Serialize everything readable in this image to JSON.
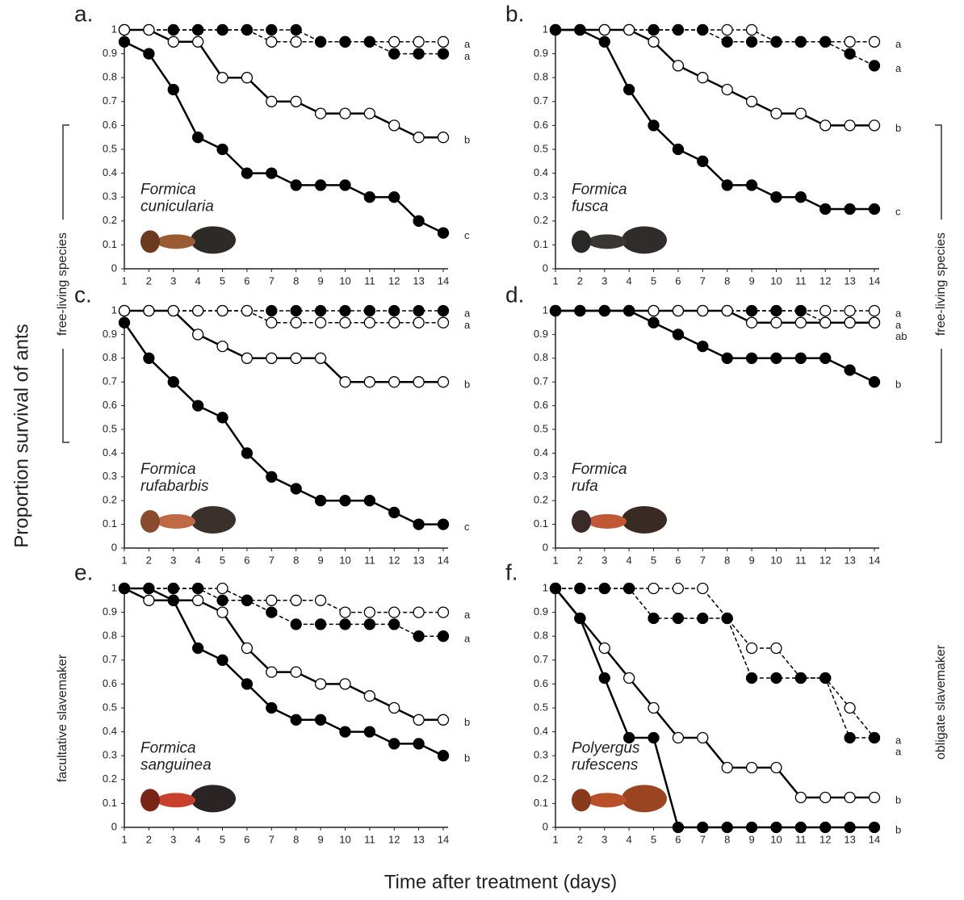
{
  "labels": {
    "y_label": "Proportion survival of ants",
    "x_label": "Time after treatment (days)",
    "groups": [
      "free-living species",
      "free-living species",
      "facultative slavemaker",
      "obligate slavemaker"
    ]
  },
  "chart_data": [
    {
      "type": "line",
      "title": "a.",
      "annotation": [
        "Formica",
        "cunicularia"
      ],
      "x": [
        1,
        2,
        3,
        4,
        5,
        6,
        7,
        8,
        9,
        10,
        11,
        12,
        13,
        14
      ],
      "xlim": [
        1,
        14
      ],
      "ylim": [
        0,
        1
      ],
      "xticks": [
        1,
        2,
        3,
        4,
        5,
        6,
        7,
        8,
        9,
        10,
        11,
        12,
        13,
        14
      ],
      "yticks": [
        0,
        0.1,
        0.2,
        0.3,
        0.4,
        0.5,
        0.6,
        0.7,
        0.8,
        0.9,
        1
      ],
      "series": [
        {
          "marker": "open",
          "dashed": true,
          "color": "#000000",
          "label": "a",
          "values": [
            1,
            1,
            1,
            1,
            1,
            1,
            0.95,
            0.95,
            0.95,
            0.95,
            0.95,
            0.95,
            0.95,
            0.95
          ]
        },
        {
          "marker": "filled",
          "dashed": true,
          "color": "#000000",
          "label": "a",
          "values": [
            1,
            1,
            1,
            1,
            1,
            1,
            1,
            1,
            0.95,
            0.95,
            0.95,
            0.9,
            0.9,
            0.9
          ]
        },
        {
          "marker": "open",
          "dashed": false,
          "color": "#000000",
          "label": "b",
          "values": [
            1,
            1,
            0.95,
            0.95,
            0.8,
            0.8,
            0.7,
            0.7,
            0.65,
            0.65,
            0.65,
            0.6,
            0.55,
            0.55
          ]
        },
        {
          "marker": "filled",
          "dashed": false,
          "color": "#000000",
          "label": "c",
          "values": [
            0.95,
            0.9,
            0.75,
            0.55,
            0.5,
            0.4,
            0.4,
            0.35,
            0.35,
            0.35,
            0.3,
            0.3,
            0.2,
            0.15
          ]
        }
      ]
    },
    {
      "type": "line",
      "title": "b.",
      "annotation": [
        "Formica",
        "fusca"
      ],
      "x": [
        1,
        2,
        3,
        4,
        5,
        6,
        7,
        8,
        9,
        10,
        11,
        12,
        13,
        14
      ],
      "xlim": [
        1,
        14
      ],
      "ylim": [
        0,
        1
      ],
      "xticks": [
        1,
        2,
        3,
        4,
        5,
        6,
        7,
        8,
        9,
        10,
        11,
        12,
        13,
        14
      ],
      "yticks": [
        0,
        0.1,
        0.2,
        0.3,
        0.4,
        0.5,
        0.6,
        0.7,
        0.8,
        0.9,
        1
      ],
      "series": [
        {
          "marker": "open",
          "dashed": true,
          "color": "#000000",
          "label": "a",
          "values": [
            1,
            1,
            1,
            1,
            1,
            1,
            1,
            1,
            1,
            0.95,
            0.95,
            0.95,
            0.95,
            0.95
          ]
        },
        {
          "marker": "filled",
          "dashed": true,
          "color": "#000000",
          "label": "a",
          "values": [
            1,
            1,
            1,
            1,
            1,
            1,
            1,
            0.95,
            0.95,
            0.95,
            0.95,
            0.95,
            0.9,
            0.85
          ]
        },
        {
          "marker": "open",
          "dashed": false,
          "color": "#000000",
          "label": "b",
          "values": [
            1,
            1,
            1,
            1,
            0.95,
            0.85,
            0.8,
            0.75,
            0.7,
            0.65,
            0.65,
            0.6,
            0.6,
            0.6
          ]
        },
        {
          "marker": "filled",
          "dashed": false,
          "color": "#000000",
          "label": "c",
          "values": [
            1,
            1,
            0.95,
            0.75,
            0.6,
            0.5,
            0.45,
            0.35,
            0.35,
            0.3,
            0.3,
            0.25,
            0.25,
            0.25
          ]
        }
      ]
    },
    {
      "type": "line",
      "title": "c.",
      "annotation": [
        "Formica",
        "rufabarbis"
      ],
      "x": [
        1,
        2,
        3,
        4,
        5,
        6,
        7,
        8,
        9,
        10,
        11,
        12,
        13,
        14
      ],
      "xlim": [
        1,
        14
      ],
      "ylim": [
        0,
        1
      ],
      "xticks": [
        1,
        2,
        3,
        4,
        5,
        6,
        7,
        8,
        9,
        10,
        11,
        12,
        13,
        14
      ],
      "yticks": [
        0,
        0.1,
        0.2,
        0.3,
        0.4,
        0.5,
        0.6,
        0.7,
        0.8,
        0.9,
        1
      ],
      "series": [
        {
          "marker": "filled",
          "dashed": true,
          "color": "#000000",
          "label": "a",
          "values": [
            1,
            1,
            1,
            1,
            1,
            1,
            1,
            1,
            1,
            1,
            1,
            1,
            1,
            1
          ]
        },
        {
          "marker": "open",
          "dashed": true,
          "color": "#000000",
          "label": "a",
          "values": [
            1,
            1,
            1,
            1,
            1,
            1,
            0.95,
            0.95,
            0.95,
            0.95,
            0.95,
            0.95,
            0.95,
            0.95
          ]
        },
        {
          "marker": "open",
          "dashed": false,
          "color": "#000000",
          "label": "b",
          "values": [
            1,
            1,
            1,
            0.9,
            0.85,
            0.8,
            0.8,
            0.8,
            0.8,
            0.7,
            0.7,
            0.7,
            0.7,
            0.7
          ]
        },
        {
          "marker": "filled",
          "dashed": false,
          "color": "#000000",
          "label": "c",
          "values": [
            0.95,
            0.8,
            0.7,
            0.6,
            0.55,
            0.4,
            0.3,
            0.25,
            0.2,
            0.2,
            0.2,
            0.15,
            0.1,
            0.1
          ]
        }
      ]
    },
    {
      "type": "line",
      "title": "d.",
      "annotation": [
        "Formica",
        "rufa"
      ],
      "x": [
        1,
        2,
        3,
        4,
        5,
        6,
        7,
        8,
        9,
        10,
        11,
        12,
        13,
        14
      ],
      "xlim": [
        1,
        14
      ],
      "ylim": [
        0,
        1
      ],
      "xticks": [
        1,
        2,
        3,
        4,
        5,
        6,
        7,
        8,
        9,
        10,
        11,
        12,
        13,
        14
      ],
      "yticks": [
        0,
        0.1,
        0.2,
        0.3,
        0.4,
        0.5,
        0.6,
        0.7,
        0.8,
        0.9,
        1
      ],
      "series": [
        {
          "marker": "open",
          "dashed": true,
          "color": "#000000",
          "label": "a",
          "values": [
            1,
            1,
            1,
            1,
            1,
            1,
            1,
            1,
            1,
            1,
            1,
            1,
            1,
            1
          ]
        },
        {
          "marker": "filled",
          "dashed": true,
          "color": "#000000",
          "label": "a",
          "values": [
            1,
            1,
            1,
            1,
            1,
            1,
            1,
            1,
            1,
            1,
            1,
            0.95,
            0.95,
            0.95
          ]
        },
        {
          "marker": "open",
          "dashed": false,
          "color": "#000000",
          "label": "ab",
          "values": [
            1,
            1,
            1,
            1,
            1,
            1,
            1,
            1,
            0.95,
            0.95,
            0.95,
            0.95,
            0.95,
            0.95
          ]
        },
        {
          "marker": "filled",
          "dashed": false,
          "color": "#000000",
          "label": "b",
          "values": [
            1,
            1,
            1,
            1,
            0.95,
            0.9,
            0.85,
            0.8,
            0.8,
            0.8,
            0.8,
            0.8,
            0.75,
            0.7
          ]
        }
      ]
    },
    {
      "type": "line",
      "title": "e.",
      "annotation": [
        "Formica",
        "sanguinea"
      ],
      "x": [
        1,
        2,
        3,
        4,
        5,
        6,
        7,
        8,
        9,
        10,
        11,
        12,
        13,
        14
      ],
      "xlim": [
        1,
        14
      ],
      "ylim": [
        0,
        1
      ],
      "xticks": [
        1,
        2,
        3,
        4,
        5,
        6,
        7,
        8,
        9,
        10,
        11,
        12,
        13,
        14
      ],
      "yticks": [
        0,
        0.1,
        0.2,
        0.3,
        0.4,
        0.5,
        0.6,
        0.7,
        0.8,
        0.9,
        1
      ],
      "series": [
        {
          "marker": "open",
          "dashed": true,
          "color": "#000000",
          "label": "a",
          "values": [
            1,
            1,
            1,
            1,
            1,
            0.95,
            0.95,
            0.95,
            0.95,
            0.9,
            0.9,
            0.9,
            0.9,
            0.9
          ]
        },
        {
          "marker": "filled",
          "dashed": true,
          "color": "#000000",
          "label": "a",
          "values": [
            1,
            1,
            1,
            1,
            0.95,
            0.95,
            0.9,
            0.85,
            0.85,
            0.85,
            0.85,
            0.85,
            0.8,
            0.8
          ]
        },
        {
          "marker": "open",
          "dashed": false,
          "color": "#000000",
          "label": "b",
          "values": [
            1,
            0.95,
            0.95,
            0.95,
            0.9,
            0.75,
            0.65,
            0.65,
            0.6,
            0.6,
            0.55,
            0.5,
            0.45,
            0.45
          ]
        },
        {
          "marker": "filled",
          "dashed": false,
          "color": "#000000",
          "label": "b",
          "values": [
            1,
            1,
            0.95,
            0.75,
            0.7,
            0.6,
            0.5,
            0.45,
            0.45,
            0.4,
            0.4,
            0.35,
            0.35,
            0.3
          ]
        }
      ]
    },
    {
      "type": "line",
      "title": "f.",
      "annotation": [
        "Polyergus",
        "rufescens"
      ],
      "x": [
        1,
        2,
        3,
        4,
        5,
        6,
        7,
        8,
        9,
        10,
        11,
        12,
        13,
        14
      ],
      "xlim": [
        1,
        14
      ],
      "ylim": [
        0,
        1
      ],
      "xticks": [
        1,
        2,
        3,
        4,
        5,
        6,
        7,
        8,
        9,
        10,
        11,
        12,
        13,
        14
      ],
      "yticks": [
        0,
        0.1,
        0.2,
        0.3,
        0.4,
        0.5,
        0.6,
        0.7,
        0.8,
        0.9,
        1
      ],
      "series": [
        {
          "marker": "open",
          "dashed": true,
          "color": "#000000",
          "label": "a",
          "values": [
            1,
            1,
            1,
            1,
            1,
            1,
            1,
            0.875,
            0.75,
            0.75,
            0.625,
            0.625,
            0.5,
            0.375
          ]
        },
        {
          "marker": "filled",
          "dashed": true,
          "color": "#000000",
          "label": "a",
          "values": [
            1,
            1,
            1,
            1,
            0.875,
            0.875,
            0.875,
            0.875,
            0.625,
            0.625,
            0.625,
            0.625,
            0.375,
            0.375
          ]
        },
        {
          "marker": "open",
          "dashed": false,
          "color": "#000000",
          "label": "b",
          "values": [
            1,
            0.875,
            0.75,
            0.625,
            0.5,
            0.375,
            0.375,
            0.25,
            0.25,
            0.25,
            0.125,
            0.125,
            0.125,
            0.125
          ]
        },
        {
          "marker": "filled",
          "dashed": false,
          "color": "#000000",
          "label": "b",
          "values": [
            1,
            0.875,
            0.625,
            0.375,
            0.375,
            0,
            0,
            0,
            0,
            0,
            0,
            0,
            0,
            0
          ]
        }
      ]
    }
  ]
}
